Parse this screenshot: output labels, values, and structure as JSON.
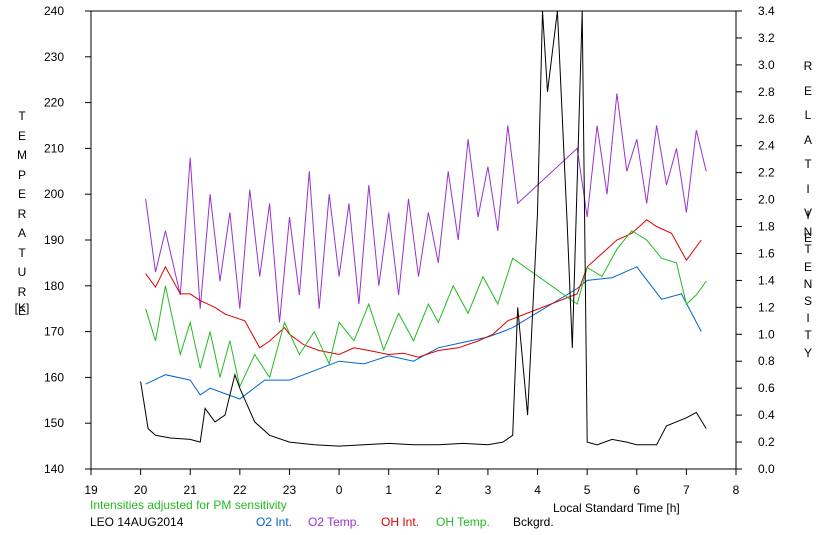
{
  "chart_data": {
    "type": "line",
    "station": "LEO 14AUG2014",
    "note": "Intensities adjusted for PM sensitivity",
    "xlabel": "Local Standard Time [h]",
    "ylabel_left_letters": [
      "T",
      "E",
      "M",
      "P",
      "E",
      "R",
      "A",
      "T",
      "U",
      "R",
      "E"
    ],
    "ylabel_left_unit": "[K]",
    "ylabel_right_letters_1": [
      "R",
      "E",
      "L",
      "A",
      "T",
      "I",
      "V",
      "E"
    ],
    "ylabel_right_letters_2": [
      "I",
      "N",
      "T",
      "E",
      "N",
      "S",
      "I",
      "T",
      "Y"
    ],
    "xlim": [
      19,
      32
    ],
    "x_ticks": [
      "19",
      "20",
      "21",
      "22",
      "23",
      "0",
      "1",
      "2",
      "3",
      "4",
      "5",
      "6",
      "7",
      "8"
    ],
    "ylim_left": [
      140,
      240
    ],
    "yticks_left": [
      "140",
      "150",
      "160",
      "170",
      "180",
      "190",
      "200",
      "210",
      "220",
      "230",
      "240"
    ],
    "ylim_right": [
      0.0,
      3.4
    ],
    "yticks_right": [
      "0.0",
      "0.2",
      "0.4",
      "0.6",
      "0.8",
      "1.0",
      "1.2",
      "1.4",
      "1.6",
      "1.8",
      "2.0",
      "2.2",
      "2.4",
      "2.6",
      "2.8",
      "3.0",
      "3.2",
      "3.4"
    ],
    "grid": false,
    "legend_position": "bottom",
    "series": [
      {
        "name": "O2 Int.",
        "axis": "right",
        "color": "#0066cc",
        "x": [
          20.1,
          20.5,
          21.0,
          21.2,
          21.4,
          21.7,
          22.0,
          22.5,
          23.0,
          23.5,
          24.0,
          24.5,
          25.0,
          25.5,
          26.0,
          26.5,
          27.0,
          27.3,
          27.5,
          28.8,
          29.0,
          29.5,
          30.0,
          30.5,
          30.9,
          31.3
        ],
        "y": [
          0.63,
          0.7,
          0.66,
          0.55,
          0.6,
          0.56,
          0.52,
          0.66,
          0.66,
          0.73,
          0.8,
          0.78,
          0.84,
          0.8,
          0.9,
          0.94,
          0.98,
          1.02,
          1.05,
          1.34,
          1.4,
          1.42,
          1.5,
          1.26,
          1.3,
          1.02
        ]
      },
      {
        "name": "O2 Temp.",
        "axis": "left",
        "color": "#9933cc",
        "x": [
          20.1,
          20.3,
          20.5,
          20.8,
          21.0,
          21.2,
          21.4,
          21.6,
          21.8,
          22.0,
          22.2,
          22.4,
          22.6,
          22.8,
          23.0,
          23.2,
          23.4,
          23.6,
          23.8,
          24.0,
          24.2,
          24.4,
          24.6,
          24.8,
          25.0,
          25.2,
          25.4,
          25.6,
          25.8,
          26.0,
          26.2,
          26.4,
          26.6,
          26.8,
          27.0,
          27.2,
          27.4,
          27.6,
          28.8,
          29.0,
          29.2,
          29.4,
          29.6,
          29.8,
          30.0,
          30.2,
          30.4,
          30.6,
          30.8,
          31.0,
          31.2,
          31.4
        ],
        "y": [
          199,
          183,
          192,
          178,
          208,
          175,
          200,
          181,
          196,
          175,
          201,
          182,
          198,
          172,
          195,
          178,
          205,
          175,
          200,
          182,
          198,
          176,
          202,
          180,
          196,
          178,
          199,
          182,
          196,
          185,
          205,
          190,
          212,
          195,
          206,
          192,
          215,
          198,
          210,
          195,
          215,
          200,
          222,
          205,
          212,
          198,
          215,
          202,
          210,
          196,
          214,
          205
        ]
      },
      {
        "name": "OH Int.",
        "axis": "right",
        "color": "#dd0000",
        "x": [
          20.1,
          20.3,
          20.5,
          20.8,
          21.0,
          21.2,
          21.5,
          21.7,
          22.1,
          22.4,
          22.6,
          22.9,
          23.0,
          23.3,
          23.6,
          24.0,
          24.3,
          24.6,
          25.0,
          25.3,
          25.6,
          26.0,
          26.4,
          26.8,
          27.1,
          27.4,
          28.8,
          29.0,
          29.3,
          29.6,
          29.9,
          30.2,
          30.4,
          30.7,
          31.0,
          31.3
        ],
        "y": [
          1.45,
          1.35,
          1.5,
          1.3,
          1.3,
          1.25,
          1.2,
          1.15,
          1.1,
          0.9,
          0.95,
          1.05,
          1.0,
          0.92,
          0.88,
          0.85,
          0.9,
          0.88,
          0.85,
          0.86,
          0.83,
          0.88,
          0.9,
          0.95,
          1.0,
          1.1,
          1.3,
          1.5,
          1.6,
          1.7,
          1.75,
          1.85,
          1.8,
          1.75,
          1.55,
          1.7
        ]
      },
      {
        "name": "OH Temp.",
        "axis": "left",
        "color": "#22bb22",
        "x": [
          20.1,
          20.3,
          20.5,
          20.8,
          21.0,
          21.2,
          21.4,
          21.6,
          21.8,
          22.0,
          22.3,
          22.6,
          22.9,
          23.2,
          23.5,
          23.8,
          24.0,
          24.3,
          24.6,
          24.9,
          25.2,
          25.5,
          25.8,
          26.0,
          26.3,
          26.6,
          26.9,
          27.2,
          27.5,
          28.8,
          29.0,
          29.3,
          29.6,
          29.9,
          30.2,
          30.5,
          30.8,
          31.0,
          31.2,
          31.4
        ],
        "y": [
          175,
          168,
          180,
          165,
          172,
          162,
          170,
          160,
          168,
          158,
          165,
          160,
          172,
          165,
          170,
          163,
          172,
          168,
          176,
          166,
          174,
          168,
          176,
          172,
          180,
          174,
          182,
          176,
          186,
          176,
          184,
          182,
          188,
          192,
          190,
          186,
          185,
          176,
          178,
          181
        ]
      },
      {
        "name": "Bckgrd.",
        "axis": "right",
        "color": "#000000",
        "x": [
          20.0,
          20.15,
          20.3,
          20.6,
          21.0,
          21.2,
          21.3,
          21.5,
          21.7,
          21.9,
          22.0,
          22.3,
          22.6,
          23.0,
          23.5,
          24.0,
          24.5,
          25.0,
          25.5,
          26.0,
          26.5,
          27.0,
          27.3,
          27.5,
          27.6,
          27.8,
          28.0,
          28.1,
          28.2,
          28.4,
          28.6,
          28.7,
          28.9,
          29.0,
          29.2,
          29.5,
          29.8,
          30.0,
          30.4,
          30.6,
          31.0,
          31.2,
          31.4
        ],
        "y": [
          0.65,
          0.3,
          0.25,
          0.23,
          0.22,
          0.2,
          0.45,
          0.35,
          0.4,
          0.7,
          0.6,
          0.35,
          0.25,
          0.2,
          0.18,
          0.17,
          0.18,
          0.19,
          0.18,
          0.18,
          0.19,
          0.18,
          0.2,
          0.25,
          1.2,
          0.4,
          1.9,
          3.4,
          2.8,
          3.4,
          1.8,
          0.9,
          3.4,
          0.2,
          0.18,
          0.22,
          0.2,
          0.18,
          0.18,
          0.32,
          0.38,
          0.42,
          0.3
        ]
      }
    ]
  }
}
